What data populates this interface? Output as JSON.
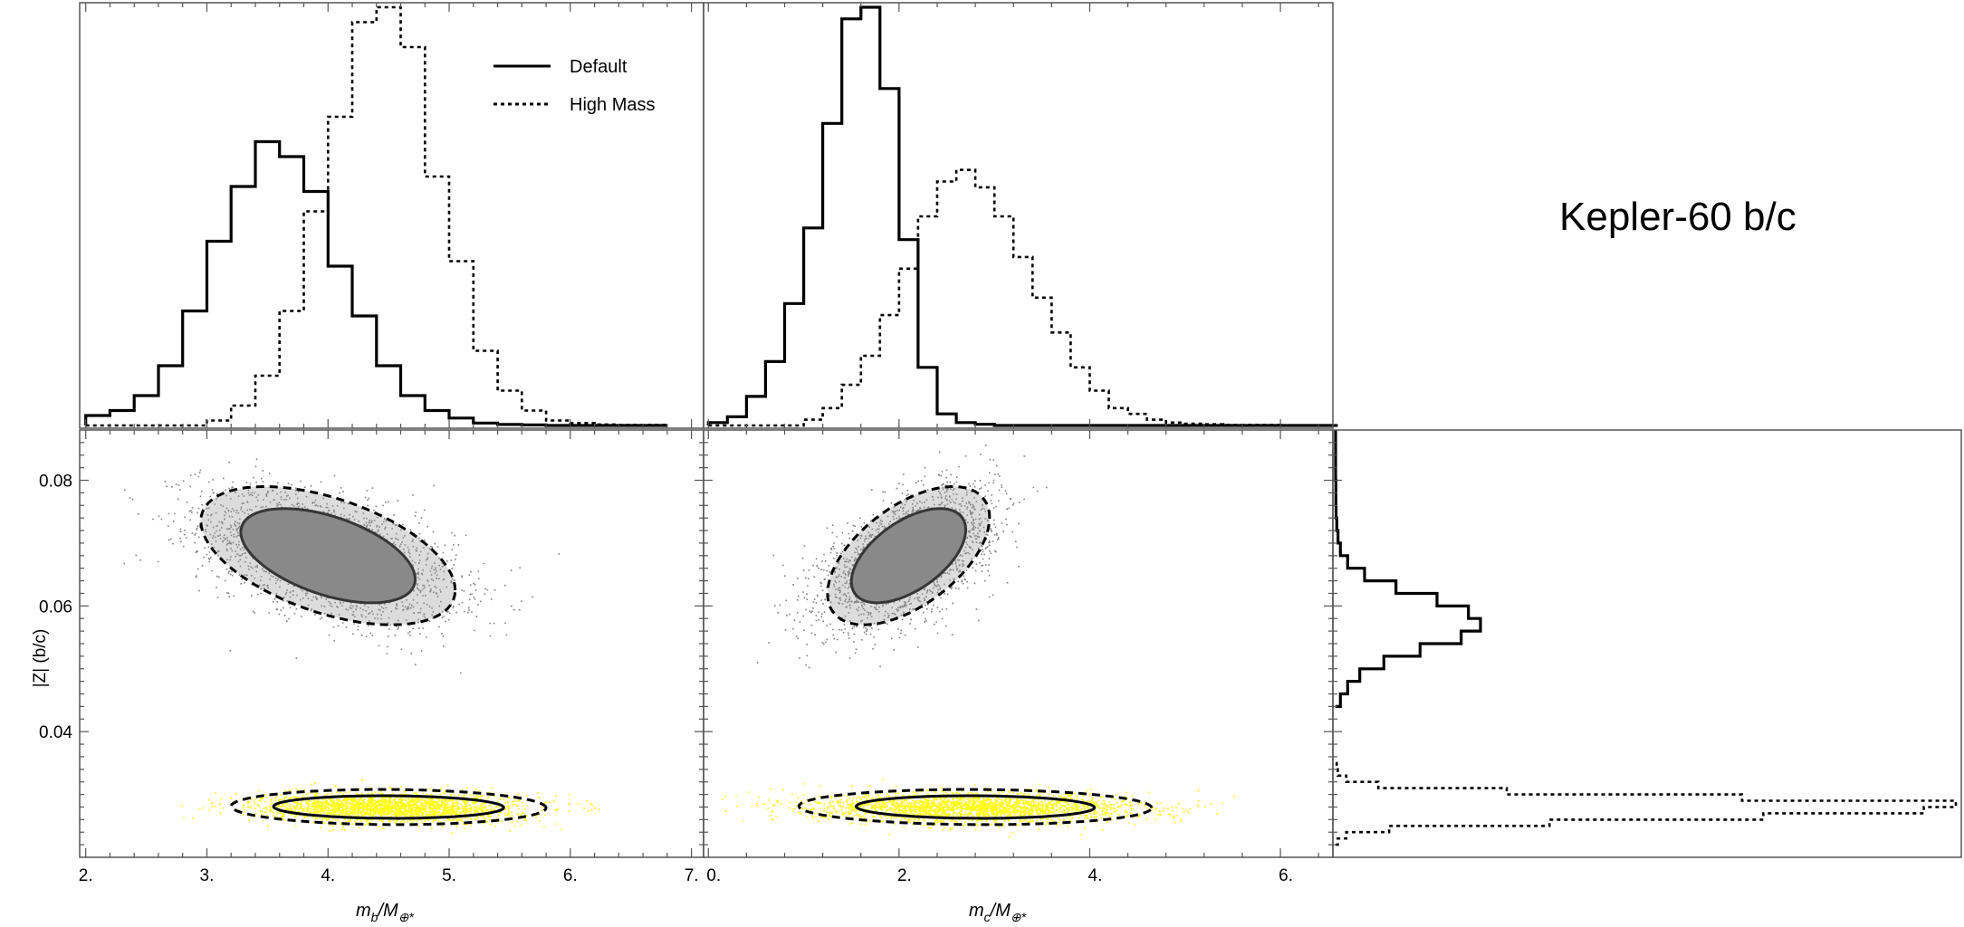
{
  "chart_data": {
    "type": "scatter",
    "title": "Kepler-60 b/c",
    "legend": {
      "placement": "top-right of first histogram",
      "entries": [
        {
          "label": "Default",
          "style": "solid"
        },
        {
          "label": "High Mass",
          "style": "dotted"
        }
      ]
    },
    "axes": {
      "mb": {
        "label_main": "m",
        "label_sub": "b",
        "label_rest": "/M",
        "label_sub2": "⊕*",
        "range": [
          1.95,
          7.1
        ],
        "ticks": [
          {
            "value": 2,
            "label": "2."
          },
          {
            "value": 3,
            "label": "3."
          },
          {
            "value": 4,
            "label": "4."
          },
          {
            "value": 5,
            "label": "5."
          },
          {
            "value": 6,
            "label": "6."
          },
          {
            "value": 7,
            "label": "7."
          }
        ]
      },
      "mc": {
        "label_main": "m",
        "label_sub": "c",
        "label_rest": "/M",
        "label_sub2": "⊕*",
        "range": [
          -0.05,
          6.55
        ],
        "ticks": [
          {
            "value": 0,
            "label": "0."
          },
          {
            "value": 2,
            "label": "2."
          },
          {
            "value": 4,
            "label": "4."
          },
          {
            "value": 6,
            "label": "6."
          }
        ]
      },
      "z": {
        "label": "|Z| (b/c)",
        "range": [
          0.02,
          0.088
        ],
        "ticks": [
          {
            "value": 0.04,
            "label": "0.04"
          },
          {
            "value": 0.06,
            "label": "0.06"
          },
          {
            "value": 0.08,
            "label": "0.08"
          }
        ]
      }
    },
    "series": [
      {
        "name": "Default",
        "point_color": "#808080",
        "mb_center": 4.0,
        "mb_sd": 0.5,
        "mc_center": 2.1,
        "mc_sd": 0.42,
        "z_center": 0.068,
        "z_sd": 0.005,
        "hist_mb": {
          "start": 2.0,
          "width": 0.2,
          "counts": [
            0.2,
            0.3,
            0.6,
            1.2,
            2.3,
            3.7,
            4.8,
            5.7,
            5.4,
            4.7,
            3.2,
            2.2,
            1.2,
            0.6,
            0.3,
            0.15,
            0.05,
            0.02,
            0.01,
            0,
            0,
            0,
            0,
            0
          ]
        },
        "hist_mc": {
          "start": 0.0,
          "width": 0.2,
          "counts": [
            0.05,
            0.15,
            0.5,
            1.1,
            2.1,
            3.4,
            5.2,
            7.0,
            7.2,
            5.8,
            3.2,
            1.0,
            0.2,
            0.05,
            0.02,
            0,
            0,
            0,
            0,
            0,
            0,
            0,
            0,
            0,
            0,
            0,
            0,
            0,
            0,
            0,
            0,
            0,
            0
          ]
        },
        "hist_z": {
          "start": 0.044,
          "width": 0.002,
          "counts": [
            0.2,
            0.5,
            1.0,
            2.0,
            3.5,
            5.2,
            6.0,
            5.5,
            4.2,
            2.5,
            1.2,
            0.5,
            0.2,
            0.1,
            0.05,
            0.02,
            0.01,
            0.01,
            0,
            0,
            0,
            0
          ]
        },
        "contours": [
          {
            "level": "1-sigma",
            "style": "solid",
            "mb_half_width": 0.72,
            "mc_half_width": 0.6,
            "z_half_width": 0.0075
          },
          {
            "level": "2-sigma",
            "style": "dashed",
            "mb_half_width": 1.05,
            "mc_half_width": 0.85,
            "z_half_width": 0.011
          }
        ]
      },
      {
        "name": "High Mass",
        "point_color": "#ffff00",
        "mb_center": 4.5,
        "mb_sd": 0.5,
        "mc_center": 2.8,
        "mc_sd": 0.8,
        "z_center": 0.028,
        "z_sd": 0.0011,
        "hist_mb": {
          "start": 2.0,
          "width": 0.2,
          "counts": [
            0,
            0,
            0,
            0,
            0,
            0.1,
            0.4,
            1.0,
            2.3,
            4.3,
            6.2,
            8.1,
            8.4,
            7.6,
            5.0,
            3.3,
            1.5,
            0.7,
            0.3,
            0.1,
            0.05,
            0.02,
            0.01,
            0.01
          ]
        },
        "hist_mc": {
          "start": 0.0,
          "width": 0.2,
          "counts": [
            0,
            0,
            0,
            0,
            0,
            0.1,
            0.3,
            0.7,
            1.2,
            1.9,
            2.7,
            3.6,
            4.2,
            4.4,
            4.1,
            3.6,
            2.9,
            2.2,
            1.6,
            1.0,
            0.6,
            0.3,
            0.2,
            0.1,
            0.05,
            0.03,
            0.02,
            0.01,
            0.01,
            0.01,
            0,
            0,
            0
          ]
        },
        "hist_z": {
          "start": 0.022,
          "width": 0.001,
          "counts": [
            0.02,
            0.1,
            0.5,
            2.0,
            4.0,
            5.5,
            5.8,
            3.8,
            1.6,
            0.4,
            0.1,
            0.02,
            0.01
          ]
        },
        "contours": [
          {
            "level": "1-sigma",
            "style": "solid",
            "mb_half_width": 0.95,
            "mc_half_width": 1.25,
            "z_half_width": 0.0018
          },
          {
            "level": "2-sigma",
            "style": "dashed",
            "mb_half_width": 1.3,
            "mc_half_width": 1.85,
            "z_half_width": 0.0028
          }
        ]
      }
    ],
    "correlations": {
      "mb_z": -0.5,
      "mc_z": 0.55,
      "high_mass_mb_z": -0.05,
      "high_mass_mc_z": -0.05
    }
  }
}
